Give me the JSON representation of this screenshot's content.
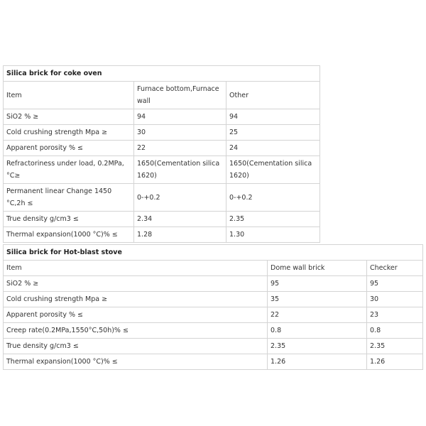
{
  "tables": [
    {
      "title": "Silica brick for coke oven",
      "header": [
        "Item",
        "Furnace bottom,Furnace wall",
        "Other"
      ],
      "rows": [
        [
          "SiO2   % ≥",
          "94",
          "94"
        ],
        [
          "Cold crushing strength Mpa  ≥",
          "30",
          "25"
        ],
        [
          "Apparent porosity % ≤",
          "22",
          "24"
        ],
        [
          "Refractoriness under load, 0.2MPa, °C≥",
          "1650(Cementation silica 1620)",
          "1650(Cementation silica 1620)"
        ],
        [
          "Permanent linear Change 1450 °C,2h ≤",
          "0-+0.2",
          "0-+0.2"
        ],
        [
          "True density g/cm3 ≤",
          "2.34",
          "2.35"
        ],
        [
          "Thermal expansion(1000 °C)% ≤",
          "1.28",
          "1.30"
        ]
      ]
    },
    {
      "title": "Silica brick for Hot-blast stove",
      "header": [
        "Item",
        "Dome wall brick",
        "Checker"
      ],
      "rows": [
        [
          "SiO2   % ≥",
          "95",
          "95"
        ],
        [
          "Cold crushing strength Mpa  ≥",
          "35",
          "30"
        ],
        [
          "Apparent porosity % ≤",
          "22",
          "23"
        ],
        [
          "Creep rate(0.2MPa,1550°C,50h)% ≤",
          "0.8",
          "0.8"
        ],
        [
          "True density g/cm3 ≤",
          "2.35",
          "2.35"
        ],
        [
          "Thermal expansion(1000 °C)% ≤",
          "1.26",
          "1.26"
        ]
      ]
    }
  ]
}
